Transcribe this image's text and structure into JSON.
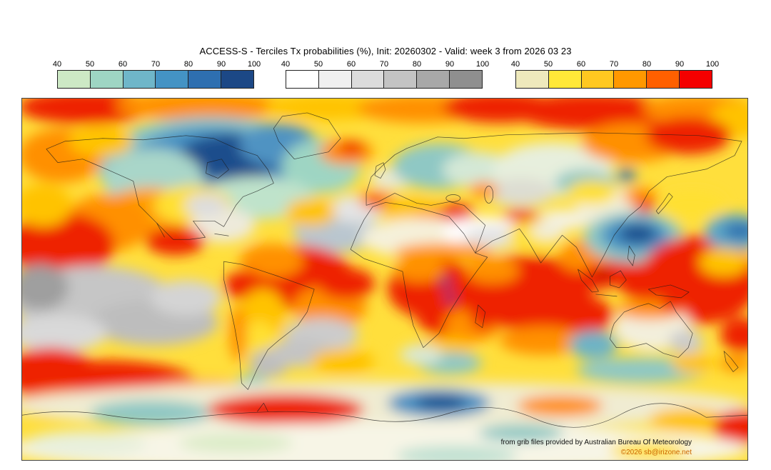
{
  "title": "ACCESS-S - Terciles Tx probabilities (%), Init: 20260302 - Valid: week 3 from 2026 03 23",
  "colorbars": {
    "ticks": [
      "40",
      "50",
      "60",
      "70",
      "80",
      "90",
      "100"
    ],
    "bars": [
      {
        "name": "below-normal-blues",
        "colors": [
          "#cde9c5",
          "#9ed5c3",
          "#6fb6c9",
          "#4493c4",
          "#2e6fb0",
          "#1c4886"
        ]
      },
      {
        "name": "near-normal-grays",
        "colors": [
          "#ffffff",
          "#f0f0f0",
          "#dcdcdc",
          "#c3c3c3",
          "#a8a8a8",
          "#8f8f8f"
        ]
      },
      {
        "name": "above-normal-warm",
        "colors": [
          "#eee9bc",
          "#ffe838",
          "#ffc820",
          "#ff9800",
          "#ff6000",
          "#f40000"
        ]
      }
    ]
  },
  "credits": {
    "provider": "from grib files provided by Australian Bureau Of Meteorology",
    "copyright": "©2026 sb@irizone.net",
    "copyright_color": "#cc6600"
  },
  "map": {
    "base_color": "#ffdf3c",
    "blobs": [
      [
        90,
        12,
        95,
        24,
        "#ee2200"
      ],
      [
        250,
        10,
        120,
        20,
        "#ff9000"
      ],
      [
        430,
        12,
        90,
        18,
        "#ffc300"
      ],
      [
        560,
        14,
        90,
        20,
        "#ff9000"
      ],
      [
        670,
        12,
        80,
        22,
        "#ee2200"
      ],
      [
        800,
        18,
        110,
        26,
        "#ee2200"
      ],
      [
        950,
        14,
        80,
        20,
        "#ff9000"
      ],
      [
        1005,
        30,
        40,
        25,
        "#ffc300"
      ],
      [
        265,
        95,
        160,
        70,
        "#8cc6c6"
      ],
      [
        265,
        90,
        115,
        50,
        "#4490c2"
      ],
      [
        295,
        82,
        75,
        32,
        "#1d4e8c"
      ],
      [
        185,
        115,
        70,
        45,
        "#a9d6c9"
      ],
      [
        360,
        65,
        55,
        30,
        "#4f93c2"
      ],
      [
        420,
        95,
        55,
        38,
        "#9ed5c3"
      ],
      [
        330,
        140,
        80,
        30,
        "#bfe3cb"
      ],
      [
        55,
        80,
        60,
        38,
        "#ff9000"
      ],
      [
        110,
        60,
        45,
        22,
        "#ffc300"
      ],
      [
        455,
        75,
        38,
        18,
        "#ff9000"
      ],
      [
        462,
        70,
        18,
        9,
        "#ee2200"
      ],
      [
        440,
        185,
        60,
        32,
        "#b9c6cf"
      ],
      [
        470,
        155,
        40,
        20,
        "#e4e4e4"
      ],
      [
        405,
        160,
        35,
        20,
        "#ffc300"
      ],
      [
        520,
        112,
        32,
        16,
        "#e9ead6"
      ],
      [
        585,
        95,
        65,
        32,
        "#8fc8c4"
      ],
      [
        640,
        100,
        50,
        25,
        "#d4e8d6"
      ],
      [
        498,
        142,
        26,
        13,
        "#ff9000"
      ],
      [
        497,
        146,
        13,
        7,
        "#ee2200"
      ],
      [
        548,
        158,
        45,
        18,
        "#ffc300"
      ],
      [
        588,
        172,
        42,
        16,
        "#ff9000"
      ],
      [
        610,
        160,
        25,
        12,
        "#ee2200"
      ],
      [
        745,
        100,
        85,
        38,
        "#e7efdd"
      ],
      [
        700,
        132,
        48,
        20,
        "#ddddd2"
      ],
      [
        790,
        118,
        42,
        18,
        "#8fc8c4"
      ],
      [
        848,
        108,
        14,
        9,
        "#2f6fae"
      ],
      [
        855,
        62,
        70,
        28,
        "#ff9000"
      ],
      [
        935,
        52,
        60,
        26,
        "#ee2200"
      ],
      [
        760,
        170,
        40,
        14,
        "#f4f2e4"
      ],
      [
        700,
        168,
        26,
        12,
        "#ee2200"
      ],
      [
        648,
        128,
        20,
        11,
        "#ff9000"
      ],
      [
        180,
        160,
        70,
        35,
        "#ffa000"
      ],
      [
        240,
        150,
        55,
        28,
        "#ffe033"
      ],
      [
        282,
        178,
        45,
        24,
        "#eeeadb"
      ],
      [
        258,
        150,
        30,
        16,
        "#dddddd"
      ],
      [
        215,
        200,
        42,
        20,
        "#ee2200"
      ],
      [
        120,
        175,
        60,
        40,
        "#ff9000"
      ],
      [
        55,
        205,
        75,
        45,
        "#ee2200"
      ],
      [
        30,
        150,
        40,
        30,
        "#ffc300"
      ],
      [
        390,
        252,
        75,
        45,
        "#ee2200"
      ],
      [
        350,
        228,
        45,
        24,
        "#ff9000"
      ],
      [
        432,
        292,
        52,
        30,
        "#ff9000"
      ],
      [
        455,
        260,
        40,
        22,
        "#ee2200"
      ],
      [
        560,
        196,
        85,
        28,
        "#f5f1da"
      ],
      [
        648,
        188,
        58,
        22,
        "#ffffff"
      ],
      [
        660,
        195,
        40,
        16,
        "#e3e3e3"
      ],
      [
        592,
        216,
        70,
        13,
        "#ff9a00"
      ],
      [
        578,
        268,
        65,
        42,
        "#ee2200"
      ],
      [
        600,
        302,
        48,
        34,
        "#ee2200"
      ],
      [
        558,
        240,
        35,
        18,
        "#ff9000"
      ],
      [
        632,
        318,
        40,
        24,
        "#ff9000"
      ],
      [
        594,
        258,
        7,
        7,
        "#1d3f8f"
      ],
      [
        601,
        280,
        6,
        7,
        "#1d3f8f"
      ],
      [
        646,
        306,
        16,
        20,
        "#ee2200"
      ],
      [
        592,
        352,
        40,
        18,
        "#ffc300"
      ],
      [
        600,
        372,
        45,
        16,
        "#8fc8c4"
      ],
      [
        560,
        360,
        30,
        14,
        "#d9e8d4"
      ],
      [
        705,
        272,
        95,
        52,
        "#ee2200"
      ],
      [
        765,
        305,
        65,
        32,
        "#ee2200"
      ],
      [
        660,
        242,
        38,
        18,
        "#ff9000"
      ],
      [
        730,
        340,
        60,
        20,
        "#ff9000"
      ],
      [
        722,
        192,
        40,
        22,
        "#ffe033"
      ],
      [
        737,
        186,
        24,
        12,
        "#f0eedd"
      ],
      [
        790,
        222,
        38,
        22,
        "#ff9000"
      ],
      [
        812,
        250,
        28,
        18,
        "#ee2200"
      ],
      [
        815,
        247,
        9,
        7,
        "#b00000"
      ],
      [
        858,
        232,
        36,
        26,
        "#ee2200"
      ],
      [
        885,
        262,
        48,
        22,
        "#ee2200"
      ],
      [
        888,
        256,
        8,
        7,
        "#a00000"
      ],
      [
        832,
        152,
        55,
        28,
        "#f2efda"
      ],
      [
        800,
        132,
        35,
        17,
        "#ffe033"
      ],
      [
        868,
        138,
        24,
        13,
        "#ff9000"
      ],
      [
        874,
        152,
        14,
        9,
        "#ee2200"
      ],
      [
        858,
        195,
        70,
        36,
        "#8fc8c4"
      ],
      [
        860,
        192,
        48,
        24,
        "#4490c2"
      ],
      [
        864,
        190,
        26,
        13,
        "#1d4e8c"
      ],
      [
        950,
        255,
        85,
        62,
        "#ee2200"
      ],
      [
        940,
        150,
        45,
        20,
        "#ffe033"
      ],
      [
        1000,
        188,
        42,
        26,
        "#5fa8c8"
      ],
      [
        1008,
        186,
        24,
        12,
        "#2f6fae"
      ],
      [
        985,
        230,
        35,
        20,
        "#ffc300"
      ],
      [
        312,
        262,
        28,
        20,
        "#ee2200"
      ],
      [
        338,
        305,
        32,
        38,
        "#ffc300"
      ],
      [
        332,
        335,
        24,
        22,
        "#ffe033"
      ],
      [
        347,
        372,
        28,
        20,
        "#bdbdbd"
      ],
      [
        322,
        402,
        22,
        14,
        "#7fc4c4"
      ],
      [
        303,
        330,
        12,
        40,
        "#ff9000"
      ],
      [
        100,
        285,
        115,
        50,
        "#c6c6c6"
      ],
      [
        185,
        315,
        90,
        32,
        "#bdbdbd"
      ],
      [
        50,
        330,
        70,
        26,
        "#d9d9d9"
      ],
      [
        25,
        265,
        40,
        32,
        "#9f9f9f"
      ],
      [
        230,
        280,
        50,
        25,
        "#d4d4d4"
      ],
      [
        115,
        400,
        130,
        32,
        "#ee2200"
      ],
      [
        255,
        420,
        85,
        25,
        "#ff9000"
      ],
      [
        60,
        430,
        70,
        20,
        "#ff9000"
      ],
      [
        40,
        380,
        60,
        30,
        "#ee2200"
      ],
      [
        420,
        332,
        52,
        24,
        "#cccccc"
      ],
      [
        392,
        357,
        45,
        20,
        "#c4c4c4"
      ],
      [
        450,
        370,
        45,
        18,
        "#ffc300"
      ],
      [
        885,
        322,
        55,
        33,
        "#f3efdc"
      ],
      [
        882,
        296,
        48,
        14,
        "#ff9000"
      ],
      [
        912,
        291,
        14,
        9,
        "#ee2200"
      ],
      [
        802,
        346,
        34,
        20,
        "#6db3c6"
      ],
      [
        932,
        342,
        24,
        17,
        "#cccccc"
      ],
      [
        868,
        382,
        90,
        18,
        "#8fc8c4"
      ],
      [
        942,
        372,
        30,
        14,
        "#ffc300"
      ],
      [
        1002,
        372,
        24,
        13,
        "#ff9a00"
      ],
      [
        1010,
        332,
        30,
        24,
        "#ee2200"
      ],
      [
        500,
        432,
        520,
        34,
        "#f0ecd2"
      ],
      [
        585,
        428,
        72,
        20,
        "#4490c2"
      ],
      [
        588,
        427,
        36,
        10,
        "#1d4e8c"
      ],
      [
        180,
        442,
        85,
        18,
        "#8fc8c4"
      ],
      [
        370,
        437,
        110,
        22,
        "#ee2200"
      ],
      [
        755,
        432,
        60,
        15,
        "#ff9000"
      ],
      [
        935,
        452,
        55,
        17,
        "#ffc300"
      ],
      [
        1008,
        462,
        38,
        24,
        "#ee2200"
      ],
      [
        500,
        492,
        520,
        36,
        "#f7f5e6"
      ],
      [
        610,
        502,
        85,
        14,
        "#bfe0d2"
      ],
      [
        300,
        484,
        80,
        14,
        "#dcecc8"
      ],
      [
        880,
        495,
        55,
        13,
        "#ffe033"
      ],
      [
        90,
        485,
        85,
        18,
        "#e8f0dc"
      ],
      [
        700,
        470,
        60,
        12,
        "#8fc8c4"
      ]
    ]
  }
}
